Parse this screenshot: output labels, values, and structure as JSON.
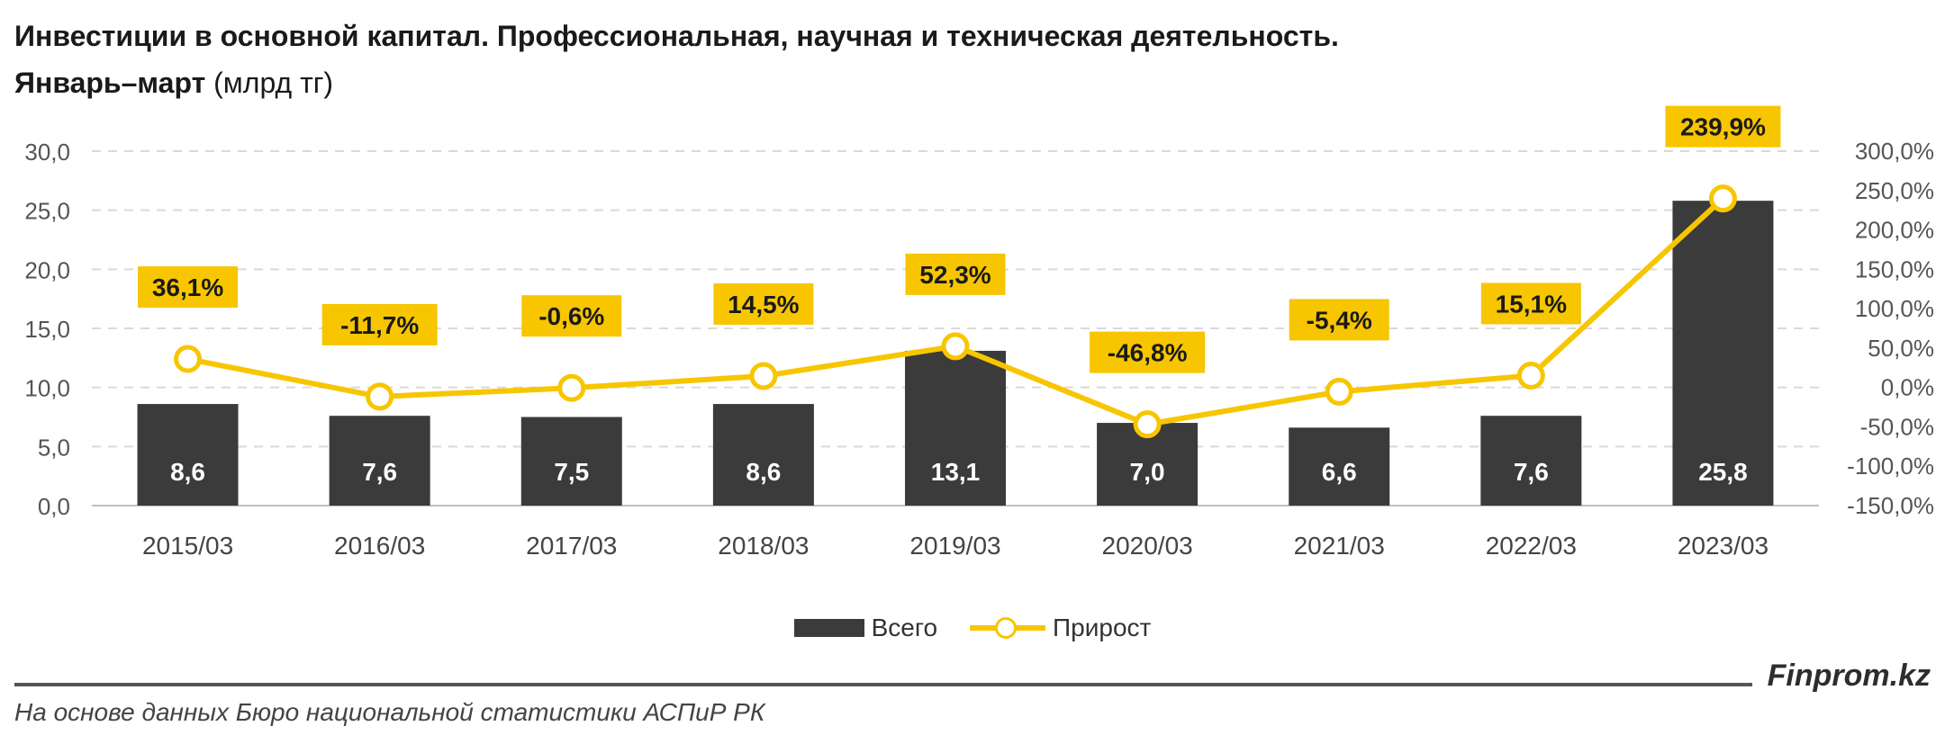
{
  "title": "Инвестиции в основной капитал. Профессиональная, научная и техническая деятельность.",
  "subtitle_bold": "Январь–март",
  "subtitle_rest": " (млрд тг)",
  "legend": {
    "bar_label": "Всего",
    "line_label": "Прирост"
  },
  "brand": "Finprom.kz",
  "source": "На основе данных Бюро национальной статистики АСПиР РК",
  "colors": {
    "bar": "#3b3b3b",
    "line": "#f7c600",
    "label_bg": "#f7c600",
    "grid": "#d9d9d9"
  },
  "chart_data": {
    "type": "bar",
    "categories": [
      "2015/03",
      "2016/03",
      "2017/03",
      "2018/03",
      "2019/03",
      "2020/03",
      "2021/03",
      "2022/03",
      "2023/03"
    ],
    "series": [
      {
        "name": "Всего",
        "type": "bar",
        "axis": "left",
        "values": [
          8.6,
          7.6,
          7.5,
          8.6,
          13.1,
          7.0,
          6.6,
          7.6,
          25.8
        ],
        "labels": [
          "8,6",
          "7,6",
          "7,5",
          "8,6",
          "13,1",
          "7,0",
          "6,6",
          "7,6",
          "25,8"
        ]
      },
      {
        "name": "Прирост",
        "type": "line",
        "axis": "right",
        "values": [
          36.1,
          -11.7,
          -0.6,
          14.5,
          52.3,
          -46.8,
          -5.4,
          15.1,
          239.9
        ],
        "labels": [
          "36,1%",
          "-11,7%",
          "-0,6%",
          "14,5%",
          "52,3%",
          "-46,8%",
          "-5,4%",
          "15,1%",
          "239,9%"
        ]
      }
    ],
    "y_left": {
      "min": 0,
      "max": 30,
      "ticks": [
        "0,0",
        "5,0",
        "10,0",
        "15,0",
        "20,0",
        "25,0",
        "30,0"
      ]
    },
    "y_right": {
      "min": -150,
      "max": 300,
      "ticks": [
        "-150,0%",
        "-100,0%",
        "-50,0%",
        "0,0%",
        "50,0%",
        "100,0%",
        "150,0%",
        "200,0%",
        "250,0%",
        "300,0%"
      ]
    },
    "grid": true,
    "legend_position": "bottom"
  }
}
